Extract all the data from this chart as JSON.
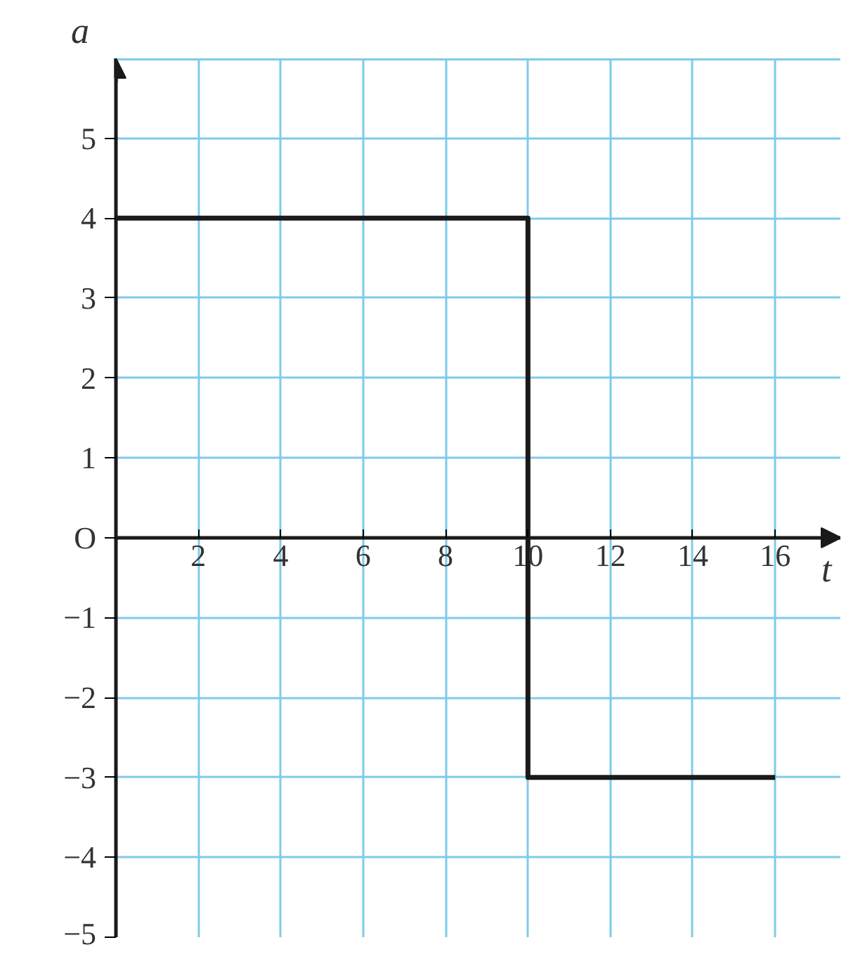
{
  "chart_data": {
    "type": "line",
    "xlabel": "t",
    "ylabel": "a",
    "x": [
      0,
      10,
      10,
      16
    ],
    "series": [
      {
        "color": "#1a1a1a",
        "values": [
          4,
          4,
          -3,
          -3
        ]
      }
    ],
    "xlim": [
      0,
      17.6
    ],
    "ylim": [
      -5,
      6
    ],
    "xticks": [
      2,
      4,
      6,
      8,
      10,
      12,
      14,
      16
    ],
    "yticks": [
      {
        "value": -5,
        "label": "−5"
      },
      {
        "value": -4,
        "label": "−4"
      },
      {
        "value": -3,
        "label": "−3"
      },
      {
        "value": -2,
        "label": "−2"
      },
      {
        "value": -1,
        "label": "−1"
      },
      {
        "value": 0,
        "label": "O"
      },
      1,
      2,
      3,
      4,
      5
    ],
    "grid": true,
    "marker": "none",
    "line_style": "solid"
  }
}
